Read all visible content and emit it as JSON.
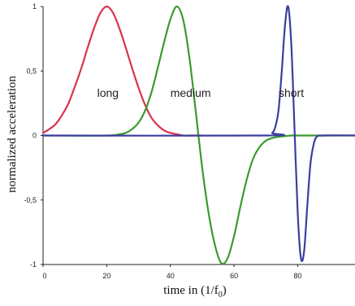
{
  "chart_data": {
    "type": "line",
    "xlabel_prefix": "time in ",
    "xlabel_unit": "(1/f",
    "xlabel_unit_sub": "0",
    "xlabel_unit_suffix": ")",
    "ylabel": "normalized acceleration",
    "xlim": [
      0,
      98
    ],
    "ylim": [
      -1,
      1
    ],
    "x_ticks": [
      {
        "value": 0,
        "label": "0"
      },
      {
        "value": 20,
        "label": "20"
      },
      {
        "value": 40,
        "label": "40"
      },
      {
        "value": 60,
        "label": "60"
      },
      {
        "value": 80,
        "label": "80"
      }
    ],
    "y_ticks": [
      {
        "value": 1,
        "label": "1"
      },
      {
        "value": 0.5,
        "label": "0,5"
      },
      {
        "value": 0,
        "label": "0"
      },
      {
        "value": -0.5,
        "label": "-0,5"
      },
      {
        "value": -1,
        "label": "-1"
      }
    ],
    "grid": false,
    "series": [
      {
        "name": "long",
        "color": "#d9344f",
        "label_at": [
          17,
          0.3
        ],
        "x": [
          0,
          2,
          4,
          6,
          8,
          10,
          12,
          14,
          16,
          18,
          20,
          22,
          24,
          26,
          28,
          30,
          32,
          34,
          36,
          38,
          40,
          42,
          44,
          46,
          50
        ],
        "y": [
          0.02,
          0.05,
          0.09,
          0.16,
          0.25,
          0.38,
          0.52,
          0.68,
          0.83,
          0.95,
          1.0,
          0.95,
          0.83,
          0.68,
          0.52,
          0.37,
          0.24,
          0.14,
          0.08,
          0.04,
          0.02,
          0.01,
          0.0,
          0.0,
          0.0
        ]
      },
      {
        "name": "medium",
        "color": "#3a9a2e",
        "label_at": [
          40,
          0.3
        ],
        "x": [
          0,
          20,
          24,
          26,
          28,
          30,
          32,
          34,
          36,
          38,
          40,
          42,
          44,
          46,
          48,
          50,
          52,
          54,
          56,
          58,
          60,
          62,
          64,
          66,
          68,
          70,
          72,
          74,
          76,
          78,
          80,
          98
        ],
        "y": [
          0.0,
          0.0,
          0.01,
          0.02,
          0.05,
          0.1,
          0.19,
          0.33,
          0.52,
          0.72,
          0.9,
          1.0,
          0.9,
          0.6,
          0.18,
          -0.25,
          -0.6,
          -0.85,
          -0.99,
          -0.95,
          -0.78,
          -0.55,
          -0.34,
          -0.18,
          -0.09,
          -0.04,
          -0.02,
          -0.01,
          -0.005,
          0.0,
          0.0,
          0.0
        ]
      },
      {
        "name": "short",
        "color": "#3b3e9e",
        "label_at": [
          74,
          0.3
        ],
        "x": [
          0,
          70,
          72,
          73,
          74,
          75,
          76,
          77,
          78,
          79,
          80,
          81,
          82,
          83,
          84,
          85,
          86,
          88,
          98
        ],
        "y": [
          0.0,
          0.0,
          0.02,
          0.07,
          0.2,
          0.5,
          0.85,
          1.0,
          0.7,
          0.05,
          -0.6,
          -0.95,
          -0.9,
          -0.55,
          -0.22,
          -0.07,
          -0.01,
          0.0,
          0.0
        ]
      }
    ]
  }
}
